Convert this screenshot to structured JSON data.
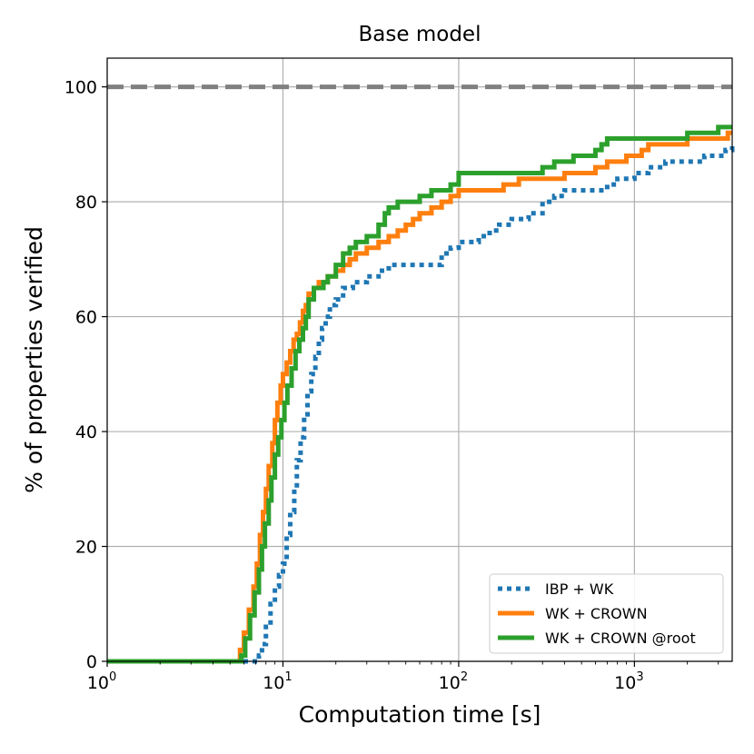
{
  "chart_data": {
    "type": "line",
    "title": "Base model",
    "xlabel": "Computation time [s]",
    "ylabel": "% of properties verified",
    "xscale": "log",
    "xlim": [
      1,
      3600
    ],
    "ylim": [
      0,
      105
    ],
    "grid": true,
    "legend_position": "lower-right",
    "x_ticks": [
      {
        "value": 1,
        "base": "10",
        "exp": "0"
      },
      {
        "value": 10,
        "base": "10",
        "exp": "1"
      },
      {
        "value": 100,
        "base": "10",
        "exp": "2"
      },
      {
        "value": 1000,
        "base": "10",
        "exp": "3"
      }
    ],
    "y_ticks": [
      {
        "value": 0,
        "label": "0"
      },
      {
        "value": 20,
        "label": "20"
      },
      {
        "value": 40,
        "label": "40"
      },
      {
        "value": 60,
        "label": "60"
      },
      {
        "value": 80,
        "label": "80"
      },
      {
        "value": 100,
        "label": "100"
      }
    ],
    "reference_line": {
      "y": 100,
      "color": "#808080",
      "style": "dashed"
    },
    "series": [
      {
        "name": "IBP + WK",
        "color": "#1f77b4",
        "style": "dotted",
        "points": [
          [
            1,
            0
          ],
          [
            6.5,
            0
          ],
          [
            7.3,
            1
          ],
          [
            7.6,
            3
          ],
          [
            8.0,
            6
          ],
          [
            8.5,
            10
          ],
          [
            9.0,
            13
          ],
          [
            9.5,
            15
          ],
          [
            10.0,
            17
          ],
          [
            10.5,
            22
          ],
          [
            11.0,
            26
          ],
          [
            11.6,
            30
          ],
          [
            12.0,
            35
          ],
          [
            12.6,
            39
          ],
          [
            13.2,
            43
          ],
          [
            13.8,
            47
          ],
          [
            14.5,
            50
          ],
          [
            15.3,
            53
          ],
          [
            16.0,
            56
          ],
          [
            16.7,
            58
          ],
          [
            17.5,
            60
          ],
          [
            18.5,
            62
          ],
          [
            20,
            63
          ],
          [
            22,
            65
          ],
          [
            25,
            66
          ],
          [
            30,
            67
          ],
          [
            35,
            68
          ],
          [
            40,
            69
          ],
          [
            45,
            69
          ],
          [
            60,
            69
          ],
          [
            70,
            69
          ],
          [
            80,
            71
          ],
          [
            90,
            72
          ],
          [
            100,
            73
          ],
          [
            115,
            73
          ],
          [
            130,
            74
          ],
          [
            150,
            75
          ],
          [
            170,
            76
          ],
          [
            200,
            77
          ],
          [
            250,
            78
          ],
          [
            300,
            80
          ],
          [
            350,
            81
          ],
          [
            400,
            82
          ],
          [
            500,
            82
          ],
          [
            600,
            82
          ],
          [
            700,
            83
          ],
          [
            800,
            84
          ],
          [
            900,
            84
          ],
          [
            1000,
            85
          ],
          [
            1200,
            86
          ],
          [
            1500,
            87
          ],
          [
            2000,
            87
          ],
          [
            2500,
            88
          ],
          [
            3000,
            88
          ],
          [
            3300,
            89
          ],
          [
            3600,
            90
          ]
        ]
      },
      {
        "name": "WK + CROWN",
        "color": "#ff7f0e",
        "style": "solid",
        "points": [
          [
            1,
            0
          ],
          [
            5.5,
            0
          ],
          [
            5.7,
            2
          ],
          [
            6.0,
            5
          ],
          [
            6.4,
            9
          ],
          [
            6.8,
            13
          ],
          [
            7.1,
            17
          ],
          [
            7.4,
            22
          ],
          [
            7.7,
            26
          ],
          [
            8.0,
            30
          ],
          [
            8.3,
            34
          ],
          [
            8.7,
            38
          ],
          [
            9.0,
            42
          ],
          [
            9.3,
            45
          ],
          [
            9.7,
            48
          ],
          [
            10.0,
            50
          ],
          [
            10.5,
            52
          ],
          [
            11.0,
            54
          ],
          [
            11.5,
            56
          ],
          [
            12.0,
            57
          ],
          [
            12.5,
            59
          ],
          [
            13.0,
            61
          ],
          [
            13.5,
            62
          ],
          [
            14.0,
            64
          ],
          [
            15,
            65
          ],
          [
            16,
            66
          ],
          [
            18,
            67
          ],
          [
            20,
            68
          ],
          [
            22,
            69
          ],
          [
            24,
            70
          ],
          [
            26,
            71
          ],
          [
            30,
            72
          ],
          [
            35,
            73
          ],
          [
            40,
            74
          ],
          [
            45,
            75
          ],
          [
            50,
            76
          ],
          [
            55,
            77
          ],
          [
            60,
            78
          ],
          [
            70,
            79
          ],
          [
            80,
            80
          ],
          [
            90,
            81
          ],
          [
            100,
            82
          ],
          [
            150,
            82
          ],
          [
            180,
            83
          ],
          [
            220,
            84
          ],
          [
            300,
            84
          ],
          [
            400,
            85
          ],
          [
            500,
            85
          ],
          [
            600,
            86
          ],
          [
            700,
            87
          ],
          [
            800,
            87
          ],
          [
            900,
            88
          ],
          [
            1000,
            88
          ],
          [
            1100,
            89
          ],
          [
            1200,
            90
          ],
          [
            1500,
            90
          ],
          [
            2000,
            91
          ],
          [
            3000,
            91
          ],
          [
            3400,
            92
          ],
          [
            3600,
            92
          ]
        ]
      },
      {
        "name": "WK + CROWN @root",
        "color": "#2ca02c",
        "style": "solid",
        "points": [
          [
            1,
            0
          ],
          [
            5.5,
            0
          ],
          [
            5.8,
            1
          ],
          [
            6.1,
            4
          ],
          [
            6.5,
            8
          ],
          [
            6.9,
            12
          ],
          [
            7.3,
            16
          ],
          [
            7.6,
            20
          ],
          [
            7.9,
            24
          ],
          [
            8.3,
            28
          ],
          [
            8.6,
            32
          ],
          [
            9.0,
            36
          ],
          [
            9.4,
            39
          ],
          [
            9.8,
            42
          ],
          [
            10.2,
            45
          ],
          [
            10.6,
            48
          ],
          [
            11.2,
            51
          ],
          [
            11.8,
            54
          ],
          [
            12.4,
            56
          ],
          [
            13.0,
            58
          ],
          [
            13.5,
            60
          ],
          [
            14.0,
            63
          ],
          [
            15,
            65
          ],
          [
            17,
            66
          ],
          [
            18,
            67
          ],
          [
            20,
            69
          ],
          [
            22,
            71
          ],
          [
            24,
            72
          ],
          [
            26,
            73
          ],
          [
            30,
            74
          ],
          [
            35,
            76
          ],
          [
            38,
            78
          ],
          [
            40,
            79
          ],
          [
            45,
            80
          ],
          [
            60,
            81
          ],
          [
            70,
            82
          ],
          [
            90,
            83
          ],
          [
            100,
            85
          ],
          [
            200,
            85
          ],
          [
            300,
            86
          ],
          [
            350,
            87
          ],
          [
            450,
            88
          ],
          [
            600,
            89
          ],
          [
            650,
            90
          ],
          [
            700,
            91
          ],
          [
            1500,
            91
          ],
          [
            2000,
            92
          ],
          [
            3000,
            93
          ],
          [
            3600,
            93
          ]
        ]
      }
    ]
  }
}
